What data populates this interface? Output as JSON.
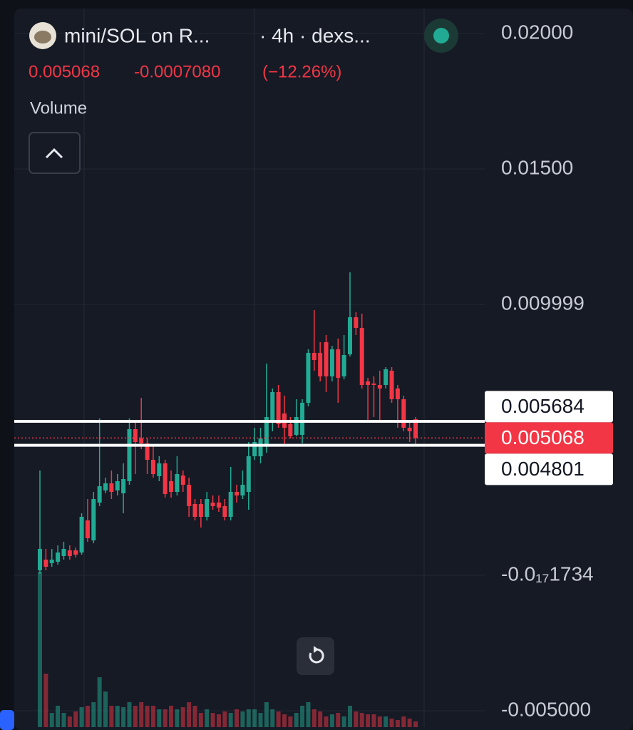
{
  "chart_data": {
    "type": "candlestick",
    "title": "mini/SOL on R...",
    "subtitle": "· 4h · dexs...",
    "last_price": 0.005068,
    "change": {
      "value": -0.000708,
      "label": "-0.0007080"
    },
    "change_percent": {
      "value": -12.26,
      "label": "(−12.26%)"
    },
    "indicator": "Volume",
    "ylim": [
      -0.005605,
      0.020921
    ],
    "yticks": [
      {
        "value": 0.02,
        "label": "0.02000"
      },
      {
        "value": 0.015,
        "label": "0.01500"
      },
      0.009999,
      {
        "value": -1.734e-18,
        "label": "-0.0₁₇1734"
      },
      {
        "value": -0.005,
        "label": "-0.005000"
      }
    ],
    "grid": true,
    "up_color": "#22ab94",
    "down_color": "#f23645",
    "price_lines": [
      {
        "value": 0.005684,
        "color": "#ffffff"
      },
      {
        "value": 0.005068,
        "color": "#f23645"
      },
      {
        "value": 0.004801,
        "color": "#ffffff"
      }
    ],
    "series": {
      "open": [
        0.000184,
        0.000579,
        0.000447,
        0.0005,
        0.000711,
        0.000921,
        0.000921,
        0.000842,
        0.002026,
        0.001289,
        0.002684,
        0.003132,
        0.003395,
        0.003132,
        0.003026,
        0.003474,
        0.005395,
        0.005053,
        0.004868,
        0.004263,
        0.003658,
        0.004132,
        0.003474,
        0.003079,
        0.003684,
        0.003342,
        0.002632,
        0.002632,
        0.002158,
        0.002684,
        0.002684,
        0.002553,
        0.002158,
        0.003079,
        0.002947,
        0.003079,
        0.004395,
        0.004395,
        0.004789,
        0.005711,
        0.006763,
        0.005974,
        0.005579,
        0.005184,
        0.005184,
        0.006368,
        0.008211,
        0.008211,
        0.008605,
        0.007342,
        0.008342,
        0.007342,
        0.008158,
        0.009526,
        0.009132,
        0.007158,
        0.007079,
        0.007026,
        0.007026,
        0.007553,
        0.006895,
        0.0065,
        0.005447,
        0.005763
      ],
      "high": [
        0.003868,
        0.000974,
        0.000974,
        0.001105,
        0.001237,
        0.001105,
        0.001026,
        0.002289,
        0.002816,
        0.003079,
        0.005789,
        0.003605,
        0.003868,
        0.003737,
        0.004132,
        0.005789,
        0.005711,
        0.006553,
        0.005053,
        0.004789,
        0.004395,
        0.004263,
        0.003868,
        0.004395,
        0.003868,
        0.003605,
        0.002816,
        0.002816,
        0.003079,
        0.002947,
        0.002947,
        0.002816,
        0.004,
        0.003342,
        0.003868,
        0.004921,
        0.005447,
        0.005447,
        0.007816,
        0.006895,
        0.007026,
        0.006632,
        0.005842,
        0.0065,
        0.0065,
        0.008342,
        0.009789,
        0.008605,
        0.008868,
        0.008474,
        0.008737,
        0.008868,
        0.011184,
        0.00971,
        0.009658,
        0.007289,
        0.007342,
        0.007553,
        0.007684,
        0.007684,
        0.007026,
        0.006632,
        0.005711,
        0.005842
      ],
      "low": [
        5.3e-05,
        0.000184,
        0.000316,
        0.000395,
        0.000579,
        0.000579,
        0.000658,
        0.000763,
        0.001237,
        0.001184,
        0.002553,
        0.003026,
        0.002816,
        0.002947,
        0.002289,
        0.003342,
        0.003737,
        0.004658,
        0.003737,
        0.003605,
        0.003474,
        0.002868,
        0.002868,
        0.002947,
        0.003079,
        0.002158,
        0.002026,
        0.001763,
        0.002026,
        0.002421,
        0.002342,
        0.002026,
        0.002026,
        0.002684,
        0.002816,
        0.002421,
        0.004263,
        0.004132,
        0.004526,
        0.005316,
        0.005447,
        0.004789,
        0.005053,
        0.005132,
        0.004868,
        0.006237,
        0.007553,
        0.007158,
        0.006763,
        0.007158,
        0.006368,
        0.007237,
        0.008079,
        0.008868,
        0.006895,
        0.005711,
        0.005842,
        0.005711,
        0.006895,
        0.006368,
        0.005447,
        0.005316,
        0.004921,
        0.004789
      ],
      "close": [
        0.000974,
        0.000316,
        0.000579,
        0.000842,
        0.000974,
        0.000711,
        0.000763,
        0.002158,
        0.001368,
        0.002816,
        0.003289,
        0.003395,
        0.003079,
        0.003474,
        0.003553,
        0.005395,
        0.004921,
        0.004868,
        0.004263,
        0.003737,
        0.004132,
        0.003,
        0.003079,
        0.003737,
        0.003342,
        0.002553,
        0.002158,
        0.002158,
        0.002816,
        0.002553,
        0.0025,
        0.002158,
        0.003079,
        0.002947,
        0.003342,
        0.004395,
        0.004921,
        0.005053,
        0.005842,
        0.006763,
        0.005579,
        0.005447,
        0.005132,
        0.005842,
        0.006368,
        0.008211,
        0.007947,
        0.007342,
        0.007342,
        0.008342,
        0.007289,
        0.008132,
        0.009526,
        0.009132,
        0.007026,
        0.007026,
        0.007026,
        0.006895,
        0.007605,
        0.0065,
        0.0065,
        0.005447,
        0.005316,
        0.005068
      ],
      "volume": [
        218,
        75,
        20,
        30,
        20,
        15,
        22,
        28,
        30,
        35,
        70,
        50,
        30,
        30,
        28,
        35,
        30,
        35,
        30,
        30,
        25,
        25,
        30,
        25,
        28,
        35,
        30,
        20,
        25,
        20,
        18,
        22,
        20,
        25,
        22,
        25,
        25,
        20,
        35,
        25,
        22,
        18,
        15,
        20,
        30,
        35,
        25,
        22,
        15,
        18,
        20,
        15,
        30,
        22,
        20,
        18,
        18,
        15,
        15,
        12,
        10,
        15,
        12,
        8
      ]
    }
  }
}
